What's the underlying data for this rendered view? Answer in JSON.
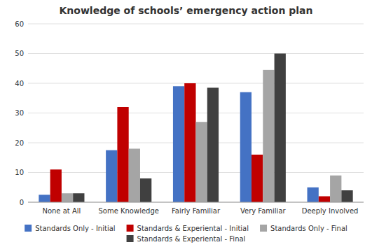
{
  "chart_data": {
    "type": "bar",
    "title": "Knowledge of schools’ emergency action plan",
    "categories": [
      "None at All",
      "Some Knowledge",
      "Fairly Familiar",
      "Very Familiar",
      "Deeply Involved"
    ],
    "series": [
      {
        "name": "Standards Only - Initial",
        "color": "#4472C4",
        "values": [
          2.5,
          17.5,
          39,
          37,
          5
        ]
      },
      {
        "name": "Standards & Experiental - Initial",
        "color": "#C00000",
        "values": [
          11,
          32,
          40,
          16,
          2
        ]
      },
      {
        "name": "Standards Only - Final",
        "color": "#A5A5A5",
        "values": [
          3,
          18,
          27,
          44.5,
          9
        ]
      },
      {
        "name": "Standards & Experiental - Final",
        "color": "#404040",
        "values": [
          3,
          8,
          38.5,
          50,
          4
        ]
      }
    ],
    "ylim": [
      0,
      60
    ],
    "yticks": [
      0,
      10,
      20,
      30,
      40,
      50,
      60
    ],
    "grid": true,
    "legend": "bottom"
  }
}
